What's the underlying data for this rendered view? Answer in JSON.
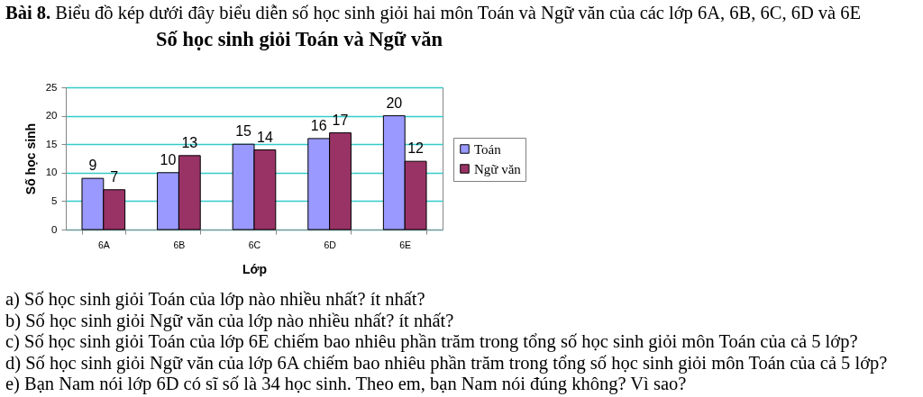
{
  "chart_data": {
    "type": "bar",
    "title": "Số học sinh giỏi Toán và Ngữ văn",
    "xlabel": "Lớp",
    "ylabel": "Số học sinh",
    "categories": [
      "6A",
      "6B",
      "6C",
      "6D",
      "6E"
    ],
    "series": [
      {
        "name": "Toán",
        "color": "#9999ff",
        "values": [
          9,
          10,
          15,
          16,
          20
        ]
      },
      {
        "name": "Ngữ văn",
        "color": "#993366",
        "values": [
          7,
          13,
          14,
          17,
          12
        ]
      }
    ],
    "ylim": [
      0,
      25
    ],
    "yticks": [
      0,
      5,
      10,
      15,
      20,
      25
    ],
    "grid": "y",
    "legend": "right",
    "data_labels": true,
    "annotations": [
      "Bài 8. Biểu đồ kép dưới đây biểu diễn số học sinh giỏi hai môn Toán và Ngữ văn của các lớp 6A, 6B, 6C, 6D và 6E",
      "a) Số học sinh giỏi Toán của lớp nào nhiều nhất? ít nhất?",
      "b) Số học sinh giỏi Ngữ văn của lớp nào nhiều nhất? ít nhất?",
      "c) Số học sinh giỏi Toán của lớp 6E chiếm bao nhiêu phần trăm trong tổng số học sinh giỏi môn Toán của cả 5 lớp?",
      "d) Số học sinh giỏi Ngữ văn của lớp 6A chiếm bao nhiêu phần trăm trong tổng số học sinh giỏi môn Toán của cả 5 lớp?",
      "e) Bạn Nam nói lớp 6D có sĩ số là 34 học sinh. Theo em, bạn Nam nói đúng không? Vì sao?"
    ]
  }
}
